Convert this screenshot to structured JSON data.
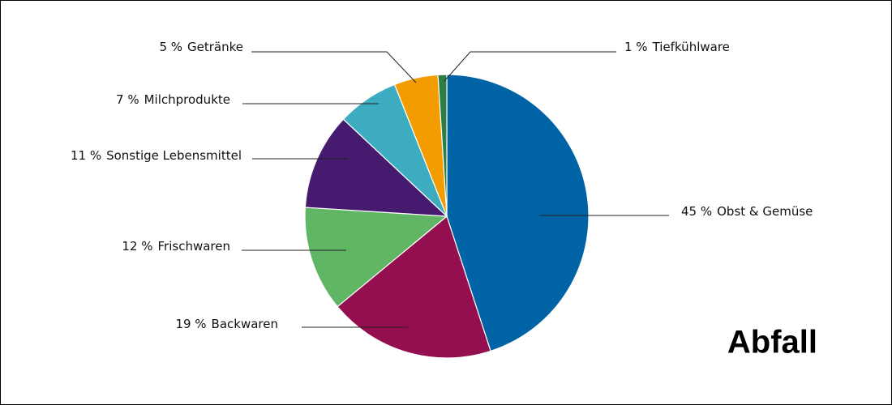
{
  "chart_data": {
    "type": "pie",
    "title": "Abfall",
    "categories": [
      "Obst & Gemüse",
      "Backwaren",
      "Frischwaren",
      "Sonstige Lebensmittel",
      "Milchprodukte",
      "Getränke",
      "Tiefkühlware"
    ],
    "values": [
      45,
      19,
      12,
      11,
      7,
      5,
      1
    ],
    "value_labels": [
      "45 %",
      "19 %",
      "12 %",
      "11 %",
      "7 %",
      "5 %",
      "1 %"
    ],
    "colors": [
      "#0063a6",
      "#930f50",
      "#61b665",
      "#461b6f",
      "#3eacc0",
      "#f29c00",
      "#2e7d45"
    ]
  }
}
